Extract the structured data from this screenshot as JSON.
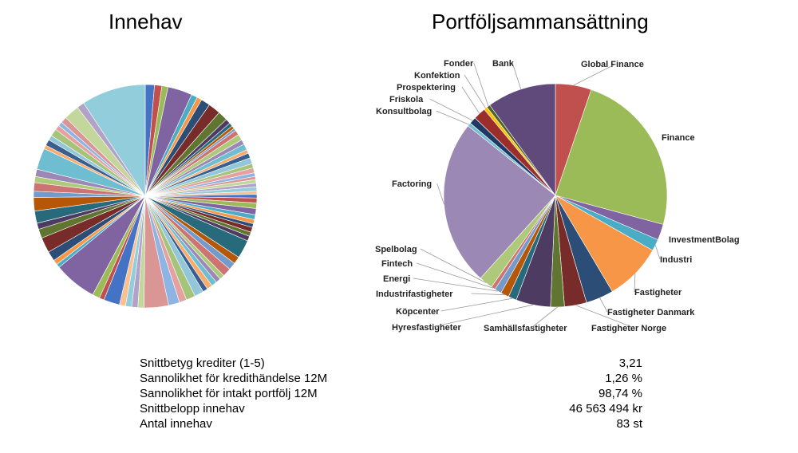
{
  "titles": {
    "left": "Innehav",
    "right": "Portföljsammansättning"
  },
  "chart_data": [
    {
      "type": "pie",
      "title": "Innehav",
      "slice_count": 83,
      "labels_shown": false,
      "colors": [
        "#4472c4",
        "#c0504d",
        "#9bbb59",
        "#8064a2",
        "#4bacc6",
        "#f79646",
        "#2c4d75",
        "#772c2a",
        "#5f7530",
        "#4d3b62",
        "#276a7c",
        "#b65708",
        "#729aca",
        "#cd7371",
        "#afc97a",
        "#9c88b5",
        "#6fbdd1",
        "#f9ab6b",
        "#3a5f8f",
        "#93c6d9",
        "#a5c37a",
        "#e4a1a0",
        "#8eb4e3",
        "#d99694",
        "#c3d69b",
        "#b3a2c7",
        "#92cddc",
        "#fac090"
      ],
      "values": [
        1.5,
        1.2,
        1.0,
        4.0,
        1.0,
        0.8,
        1.5,
        2.0,
        1.6,
        0.8,
        0.6,
        0.5,
        0.4,
        0.8,
        1.0,
        0.8,
        1.0,
        0.6,
        0.8,
        1.0,
        0.7,
        0.8,
        0.6,
        0.5,
        0.6,
        0.6,
        0.7,
        0.5,
        0.6,
        0.8,
        0.9,
        1.0,
        0.8,
        0.7,
        0.6,
        0.8,
        0.7,
        0.8,
        3.0,
        1.2,
        1.2,
        1.4,
        0.8,
        0.8,
        0.9,
        0.9,
        0.8,
        1.5,
        1.5,
        1.2,
        1.8,
        4.0,
        1.0,
        1.0,
        1.0,
        1.0,
        2.6,
        0.8,
        1.2,
        7.0,
        0.6,
        0.8,
        1.6,
        2.5,
        1.5,
        1.0,
        2.0,
        2.2,
        1.0,
        1.4,
        1.0,
        1.2,
        3.5,
        0.6,
        1.0,
        0.8,
        1.2,
        0.8,
        0.7,
        1.0,
        2.5,
        1.2,
        10.5
      ]
    },
    {
      "type": "pie",
      "title": "Portföljsammansättning",
      "slices": [
        {
          "label": "Global Finance",
          "value": 5.2,
          "color": "#c0504d"
        },
        {
          "label": "Finance",
          "value": 24.0,
          "color": "#9bbb59"
        },
        {
          "label": "InvestmentBolag",
          "value": 2.3,
          "color": "#8064a2"
        },
        {
          "label": "Industri",
          "value": 1.7,
          "color": "#4bacc6"
        },
        {
          "label": "Fastigheter",
          "value": 8.3,
          "color": "#f79646"
        },
        {
          "label": "Fastigheter Danmark",
          "value": 4.0,
          "color": "#2c4d75"
        },
        {
          "label": "Fastigheter Norge",
          "value": 3.2,
          "color": "#772c2a"
        },
        {
          "label": "Samhällsfastigheter",
          "value": 2.0,
          "color": "#5f7530"
        },
        {
          "label": "Hyresfastigheter",
          "value": 5.0,
          "color": "#4d3b62"
        },
        {
          "label": "Köpcenter",
          "value": 1.2,
          "color": "#276a7c"
        },
        {
          "label": "Industrifastigheter",
          "value": 1.2,
          "color": "#b65708"
        },
        {
          "label": "Energi",
          "value": 1.0,
          "color": "#729aca"
        },
        {
          "label": "Fintech",
          "value": 0.6,
          "color": "#cd7371"
        },
        {
          "label": "Spelbolag",
          "value": 2.0,
          "color": "#afc97a"
        },
        {
          "label": "Factoring",
          "value": 24.0,
          "color": "#9c88b5"
        },
        {
          "label": "Konsultbolag",
          "value": 0.5,
          "color": "#6fbdd1"
        },
        {
          "label": "Friskola",
          "value": 1.0,
          "color": "#1f3864"
        },
        {
          "label": "Prospektering",
          "value": 1.8,
          "color": "#9b2d2a"
        },
        {
          "label": "Konfektion",
          "value": 0.5,
          "color": "#ffc000"
        },
        {
          "label": "Fonder",
          "value": 0.5,
          "color": "#4f6228"
        },
        {
          "label": "Bank",
          "value": 10.0,
          "color": "#604a7b"
        }
      ]
    }
  ],
  "stats": [
    {
      "label": "Snittbetyg krediter (1-5)",
      "value": "3,21"
    },
    {
      "label": "Sannolikhet för kredithändelse 12M",
      "value": "1,26 %"
    },
    {
      "label": "Sannolikhet för intakt portfölj 12M",
      "value": "98,74 %"
    },
    {
      "label": "Snittbelopp innehav",
      "value": "46 563 494 kr"
    },
    {
      "label": "Antal innehav",
      "value": "83 st"
    }
  ]
}
